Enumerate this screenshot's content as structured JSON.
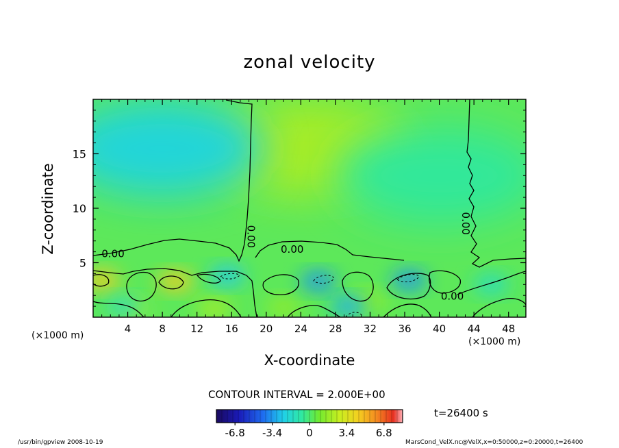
{
  "chart_data": {
    "type": "heatmap",
    "title": "zonal velocity",
    "xlabel": "X-coordinate",
    "ylabel": "Z-coordinate",
    "x_unit_label_left": "(×1000 m)",
    "x_unit_label_right": "(×1000 m)",
    "xlim": [
      0,
      50
    ],
    "ylim": [
      0,
      20
    ],
    "x_ticks": [
      "4",
      "8",
      "12",
      "16",
      "20",
      "24",
      "28",
      "32",
      "36",
      "40",
      "44",
      "48"
    ],
    "x_tick_values": [
      4,
      8,
      12,
      16,
      20,
      24,
      28,
      32,
      36,
      40,
      44,
      48
    ],
    "y_ticks": [
      "5",
      "10",
      "15"
    ],
    "y_tick_values": [
      5,
      10,
      15
    ],
    "contour_labels": [
      {
        "text": "0.00",
        "x": 2.3,
        "y": 5.8
      },
      {
        "text": "0.00",
        "x": 18.2,
        "y": 7.4,
        "rotate": 90
      },
      {
        "text": "0.00",
        "x": 23.0,
        "y": 6.2
      },
      {
        "text": "0.00",
        "x": 41.5,
        "y": 1.9
      },
      {
        "text": "0.00",
        "x": 43.0,
        "y": 8.6,
        "rotate": 90
      }
    ],
    "contour_interval_text": "CONTOUR INTERVAL = 2.000E+00",
    "colorbar": {
      "range": [
        -8.5,
        8.5
      ],
      "ticks": [
        "-6.8",
        "-3.4",
        "0",
        "3.4",
        "6.8"
      ],
      "tick_values": [
        -6.8,
        -3.4,
        0,
        3.4,
        6.8
      ]
    },
    "time_label": "t=26400  s",
    "field_features": [
      {
        "kind": "positive",
        "x": 25,
        "y": 15.5,
        "value": 2.0
      },
      {
        "kind": "negative",
        "x": 8,
        "y": 15.5,
        "value": -2.0
      },
      {
        "kind": "negative",
        "x": 40,
        "y": 13,
        "value": -0.6
      },
      {
        "kind": "positive",
        "x": 1,
        "y": 3.4,
        "value": 4.5
      },
      {
        "kind": "positive",
        "x": 9.5,
        "y": 3.3,
        "value": 4.5
      },
      {
        "kind": "positive",
        "x": 4.5,
        "y": 0.8,
        "value": 2.0
      },
      {
        "kind": "positive",
        "x": 14,
        "y": 0.8,
        "value": 2.0
      },
      {
        "kind": "positive",
        "x": 22,
        "y": 0.9,
        "value": 1.6
      },
      {
        "kind": "positive",
        "x": 32,
        "y": 1.5,
        "value": 1.6
      },
      {
        "kind": "negative",
        "x": 15.5,
        "y": 3.8,
        "value": -2.5
      },
      {
        "kind": "negative",
        "x": 26,
        "y": 3.3,
        "value": -3.5
      },
      {
        "kind": "negative",
        "x": 29.5,
        "y": 1.0,
        "value": -3.0
      },
      {
        "kind": "negative",
        "x": 36.5,
        "y": 3.4,
        "value": -3.5
      },
      {
        "kind": "negative",
        "x": 3.5,
        "y": 1.0,
        "value": -1.5
      },
      {
        "kind": "negative",
        "x": 46,
        "y": 3.0,
        "value": -1.5
      }
    ]
  },
  "footer": {
    "left": "/usr/bin/gpview   2008-10-19",
    "right": "MarsCond_VelX.nc@VelX,x=0:50000,z=0:20000,t=26400"
  }
}
